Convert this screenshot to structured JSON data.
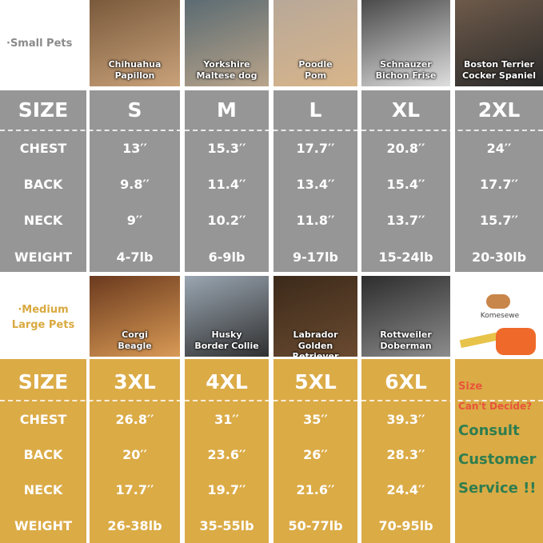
{
  "small_pets": {
    "label": "·Small Pets",
    "photos": [
      {
        "caption": [
          "Chihuahua",
          "Papillon"
        ]
      },
      {
        "caption": [
          "Yorkshire",
          "Maltese dog"
        ]
      },
      {
        "caption": [
          "Poodle",
          "Pom"
        ]
      },
      {
        "caption": [
          "Schnauzer",
          "Bichon Frise"
        ]
      },
      {
        "caption": [
          "Boston Terrier",
          "Cocker Spaniel"
        ]
      }
    ]
  },
  "small_table": {
    "header": [
      "SIZE",
      "S",
      "M",
      "L",
      "XL",
      "2XL"
    ],
    "rows": [
      [
        "CHEST",
        "13′′",
        "15.3′′",
        "17.7′′",
        "20.8′′",
        "24′′"
      ],
      [
        "BACK",
        "9.8′′",
        "11.4′′",
        "13.4′′",
        "15.4′′",
        "17.7′′"
      ],
      [
        "NECK",
        "9′′",
        "10.2′′",
        "11.8′′",
        "13.7′′",
        "15.7′′"
      ],
      [
        "WEIGHT",
        "4-7lb",
        "6-9lb",
        "9-17lb",
        "15-24lb",
        "20-30lb"
      ]
    ]
  },
  "large_pets": {
    "label": [
      "·Medium",
      "Large Pets"
    ],
    "photos": [
      {
        "caption": [
          "Corgi",
          "Beagle"
        ]
      },
      {
        "caption": [
          "Husky",
          "Border Collie"
        ]
      },
      {
        "caption": [
          "Labrador",
          "Golden Retriever"
        ]
      },
      {
        "caption": [
          "Rottweiler",
          "Doberman"
        ]
      }
    ],
    "logo": "Komesewe"
  },
  "large_table": {
    "header": [
      "SIZE",
      "3XL",
      "4XL",
      "5XL",
      "6XL"
    ],
    "rows": [
      [
        "CHEST",
        "26.8′′",
        "31′′",
        "35′′",
        "39.3′′"
      ],
      [
        "BACK",
        "20′′",
        "23.6′′",
        "26′′",
        "28.3′′"
      ],
      [
        "NECK",
        "17.7′′",
        "19.7′′",
        "21.6′′",
        "24.4′′"
      ],
      [
        "WEIGHT",
        "26-38lb",
        "35-55lb",
        "50-77lb",
        "70-95lb"
      ]
    ]
  },
  "help": [
    "Size",
    "Can't Decide?",
    "Consult",
    "Customer",
    "Service !!"
  ]
}
